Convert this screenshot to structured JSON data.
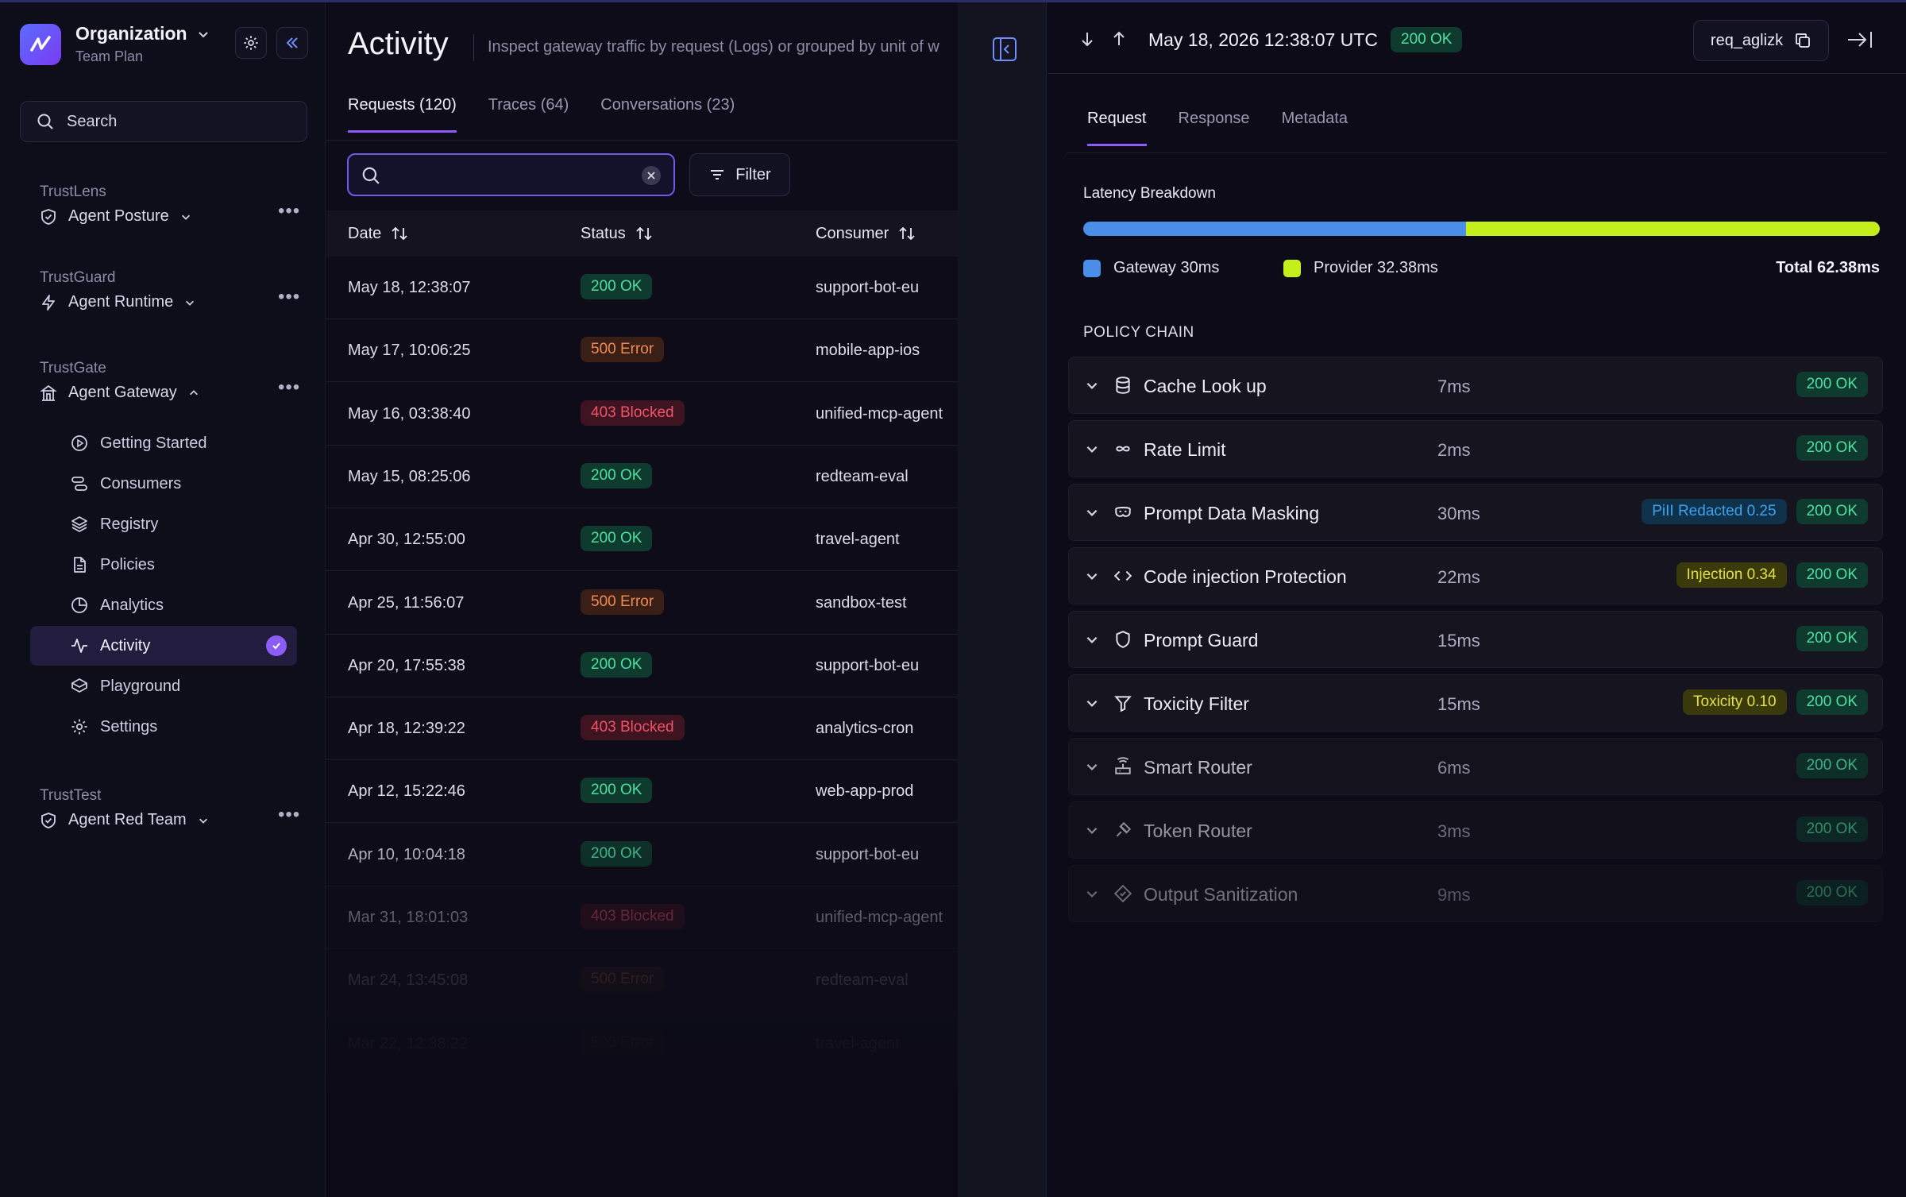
{
  "org": {
    "name": "Organization",
    "plan": "Team Plan"
  },
  "sidebar": {
    "search_label": "Search",
    "sections": [
      {
        "title": "TrustLens",
        "product": "Agent Posture"
      },
      {
        "title": "TrustGuard",
        "product": "Agent Runtime"
      },
      {
        "title": "TrustGate",
        "product": "Agent Gateway"
      },
      {
        "title": "TrustTest",
        "product": "Agent Red Team"
      }
    ],
    "nav": [
      {
        "label": "Getting Started",
        "icon": "play-circle-icon"
      },
      {
        "label": "Consumers",
        "icon": "consumers-icon"
      },
      {
        "label": "Registry",
        "icon": "layers-icon"
      },
      {
        "label": "Policies",
        "icon": "document-icon"
      },
      {
        "label": "Analytics",
        "icon": "pie-chart-icon"
      },
      {
        "label": "Activity",
        "icon": "activity-icon"
      },
      {
        "label": "Playground",
        "icon": "playground-icon"
      },
      {
        "label": "Settings",
        "icon": "gear-icon"
      }
    ]
  },
  "main": {
    "title": "Activity",
    "subtitle": "Inspect gateway traffic by request (Logs) or grouped by unit of w",
    "tabs": [
      "Requests (120)",
      "Traces (64)",
      "Conversations (23)"
    ],
    "filter_label": "Filter",
    "columns": [
      "Date",
      "Status",
      "Consumer"
    ],
    "rows": [
      {
        "date": "May 18, 12:38:07",
        "status": "200 OK",
        "kind": "ok",
        "consumer": "support-bot-eu"
      },
      {
        "date": "May 17, 10:06:25",
        "status": "500 Error",
        "kind": "err",
        "consumer": "mobile-app-ios"
      },
      {
        "date": "May 16, 03:38:40",
        "status": "403 Blocked",
        "kind": "blk",
        "consumer": "unified-mcp-agent"
      },
      {
        "date": "May 15, 08:25:06",
        "status": "200 OK",
        "kind": "ok",
        "consumer": "redteam-eval"
      },
      {
        "date": "Apr 30, 12:55:00",
        "status": "200 OK",
        "kind": "ok",
        "consumer": "travel-agent"
      },
      {
        "date": "Apr 25, 11:56:07",
        "status": "500 Error",
        "kind": "err",
        "consumer": "sandbox-test"
      },
      {
        "date": "Apr 20, 17:55:38",
        "status": "200 OK",
        "kind": "ok",
        "consumer": "support-bot-eu"
      },
      {
        "date": "Apr 18, 12:39:22",
        "status": "403 Blocked",
        "kind": "blk",
        "consumer": "analytics-cron"
      },
      {
        "date": "Apr 12, 15:22:46",
        "status": "200 OK",
        "kind": "ok",
        "consumer": "web-app-prod"
      },
      {
        "date": "Apr 10, 10:04:18",
        "status": "200 OK",
        "kind": "ok",
        "consumer": "support-bot-eu"
      },
      {
        "date": "Mar 31, 18:01:03",
        "status": "403 Blocked",
        "kind": "blk",
        "consumer": "unified-mcp-agent"
      },
      {
        "date": "Mar 24, 13:45:08",
        "status": "500 Error",
        "kind": "err",
        "consumer": "redteam-eval"
      },
      {
        "date": "Mar 22, 12:38:22",
        "status": "500 Error",
        "kind": "err",
        "consumer": "travel-agent"
      }
    ]
  },
  "detail": {
    "timestamp": "May 18, 2026 12:38:07 UTC",
    "status": "200 OK",
    "request_id": "req_aglizk",
    "tabs": [
      "Request",
      "Response",
      "Metadata"
    ],
    "latency": {
      "title": "Latency Breakdown",
      "gateway_label": "Gateway 30ms",
      "provider_label": "Provider 32.38ms",
      "total_label": "Total 62.38ms",
      "gateway_ms": 30,
      "provider_ms": 32.38,
      "gateway_color": "#4a8ee8",
      "provider_color": "#c5ef1c"
    },
    "chain_title": "POLICY CHAIN",
    "policies": [
      {
        "name": "Cache Look up",
        "time": "7ms",
        "icon": "database-icon",
        "tags": []
      },
      {
        "name": "Rate Limit",
        "time": "2ms",
        "icon": "infinity-icon",
        "tags": []
      },
      {
        "name": "Prompt Data Masking",
        "time": "30ms",
        "icon": "mask-icon",
        "tags": [
          {
            "label": "PiII Redacted 0.25",
            "kind": "pii"
          }
        ]
      },
      {
        "name": "Code injection Protection",
        "time": "22ms",
        "icon": "code-icon",
        "tags": [
          {
            "label": "Injection 0.34",
            "kind": "warn"
          }
        ]
      },
      {
        "name": "Prompt Guard",
        "time": "15ms",
        "icon": "shield-icon",
        "tags": []
      },
      {
        "name": "Toxicity Filter",
        "time": "15ms",
        "icon": "filter-icon",
        "tags": [
          {
            "label": "Toxicity 0.10",
            "kind": "warn"
          }
        ]
      },
      {
        "name": "Smart Router",
        "time": "6ms",
        "icon": "router-icon",
        "tags": []
      },
      {
        "name": "Token Router",
        "time": "3ms",
        "icon": "token-icon",
        "tags": []
      },
      {
        "name": "Output Sanitization",
        "time": "9ms",
        "icon": "sanitize-icon",
        "tags": []
      }
    ],
    "policy_status": "200 OK"
  }
}
